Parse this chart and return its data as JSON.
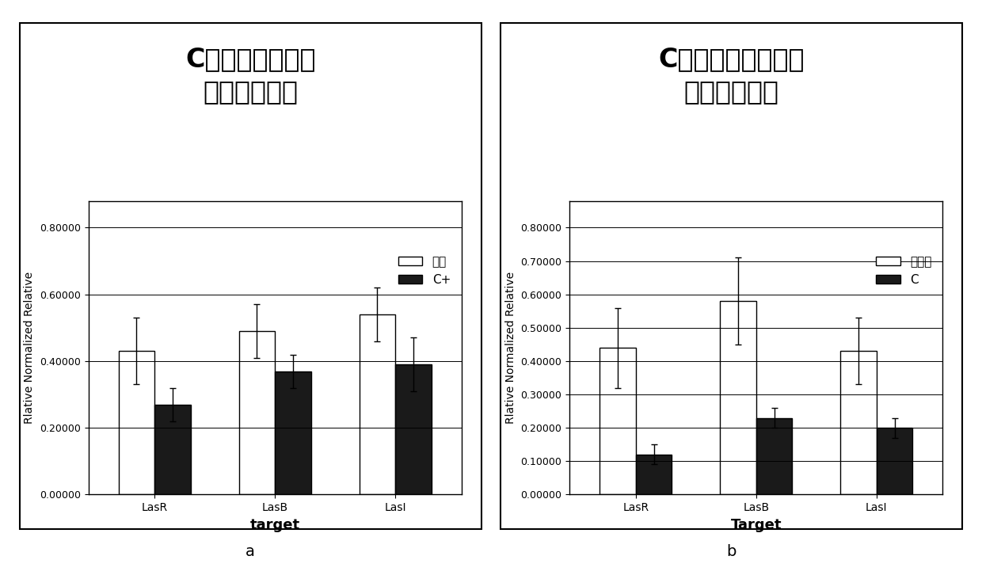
{
  "panel_a": {
    "title": "C对质控菌株目的\n基因表达影响",
    "categories": [
      "LasR",
      "LasB",
      "LasI"
    ],
    "xlabel": "target",
    "ylabel": "Rlative Normalized Relative",
    "series1_label": "质控",
    "series2_label": "C+",
    "series1_values": [
      0.43,
      0.49,
      0.54
    ],
    "series2_values": [
      0.27,
      0.37,
      0.39
    ],
    "series1_errors": [
      0.1,
      0.08,
      0.08
    ],
    "series2_errors": [
      0.05,
      0.05,
      0.08
    ],
    "ylim": [
      0.0,
      0.88
    ],
    "yticks": [
      0.0,
      0.2,
      0.4,
      0.6,
      0.8
    ],
    "ytick_labels": [
      "0.00000",
      "0.20000",
      "0.40000",
      "0.60000",
      "0.80000"
    ]
  },
  "panel_b": {
    "title": "C对孔庆祥菌株目的\n基因表达影响",
    "categories": [
      "LasR",
      "LasB",
      "LasI"
    ],
    "xlabel": "Target",
    "ylabel": "Rlative Normalized Relative",
    "series1_label": "孔庆祥",
    "series2_label": "C",
    "series1_values": [
      0.44,
      0.58,
      0.43
    ],
    "series2_values": [
      0.12,
      0.23,
      0.2
    ],
    "series1_errors": [
      0.12,
      0.13,
      0.1
    ],
    "series2_errors": [
      0.03,
      0.03,
      0.03
    ],
    "ylim": [
      0.0,
      0.88
    ],
    "yticks": [
      0.0,
      0.1,
      0.2,
      0.3,
      0.4,
      0.5,
      0.6,
      0.7,
      0.8
    ],
    "ytick_labels": [
      "0.00000",
      "0.10000",
      "0.20000",
      "0.30000",
      "0.40000",
      "0.50000",
      "0.60000",
      "0.70000",
      "0.80000"
    ]
  },
  "bar_width": 0.3,
  "bar_color_white": "#ffffff",
  "bar_color_black": "#1a1a1a",
  "bar_edge_color": "#000000",
  "background_color": "#ffffff",
  "label_a": "a",
  "label_b": "b",
  "title_fontsize": 24,
  "axis_label_fontsize": 10,
  "tick_fontsize": 9,
  "legend_fontsize": 11,
  "xlabel_fontsize": 13
}
